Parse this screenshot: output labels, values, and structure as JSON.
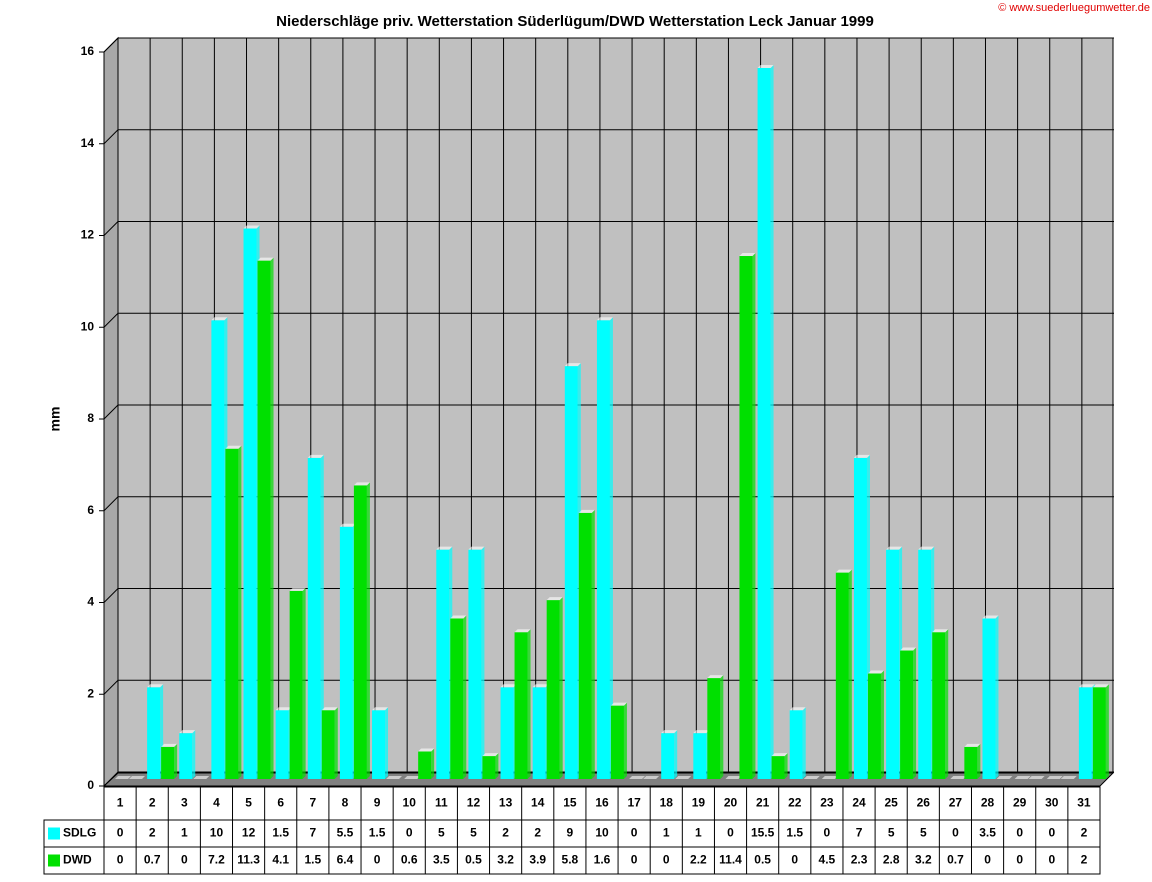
{
  "chart_data": {
    "type": "bar",
    "title": "Niederschläge priv. Wetterstation Süderlügum/DWD Wetterstation Leck Januar 1999",
    "copyright": "© www.suederluegumwetter.de",
    "y_label": "mm",
    "categories": [
      "1",
      "2",
      "3",
      "4",
      "5",
      "6",
      "7",
      "8",
      "9",
      "10",
      "11",
      "12",
      "13",
      "14",
      "15",
      "16",
      "17",
      "18",
      "19",
      "20",
      "21",
      "22",
      "23",
      "24",
      "25",
      "26",
      "27",
      "28",
      "29",
      "30",
      "31"
    ],
    "series": [
      {
        "name": "SDLG",
        "color": "#00ffff",
        "values": [
          0,
          2,
          1,
          10,
          12,
          1.5,
          7,
          5.5,
          1.5,
          0,
          5,
          5,
          2,
          2,
          9,
          10,
          0,
          1,
          1,
          0,
          15.5,
          1.5,
          0,
          7,
          5,
          5,
          0,
          3.5,
          0,
          0,
          2
        ]
      },
      {
        "name": "DWD",
        "color": "#00e000",
        "values": [
          0,
          0.7,
          0,
          7.2,
          11.3,
          4.1,
          1.5,
          6.4,
          0,
          0.6,
          3.5,
          0.5,
          3.2,
          3.9,
          5.8,
          1.6,
          0,
          0,
          2.2,
          11.4,
          0.5,
          0,
          4.5,
          2.3,
          2.8,
          3.2,
          0.7,
          0,
          0,
          0,
          2
        ]
      }
    ],
    "ylim": [
      0,
      16
    ],
    "yticks": [
      0,
      2,
      4,
      6,
      8,
      10,
      12,
      14,
      16
    ],
    "grid": true,
    "data_table": true
  }
}
